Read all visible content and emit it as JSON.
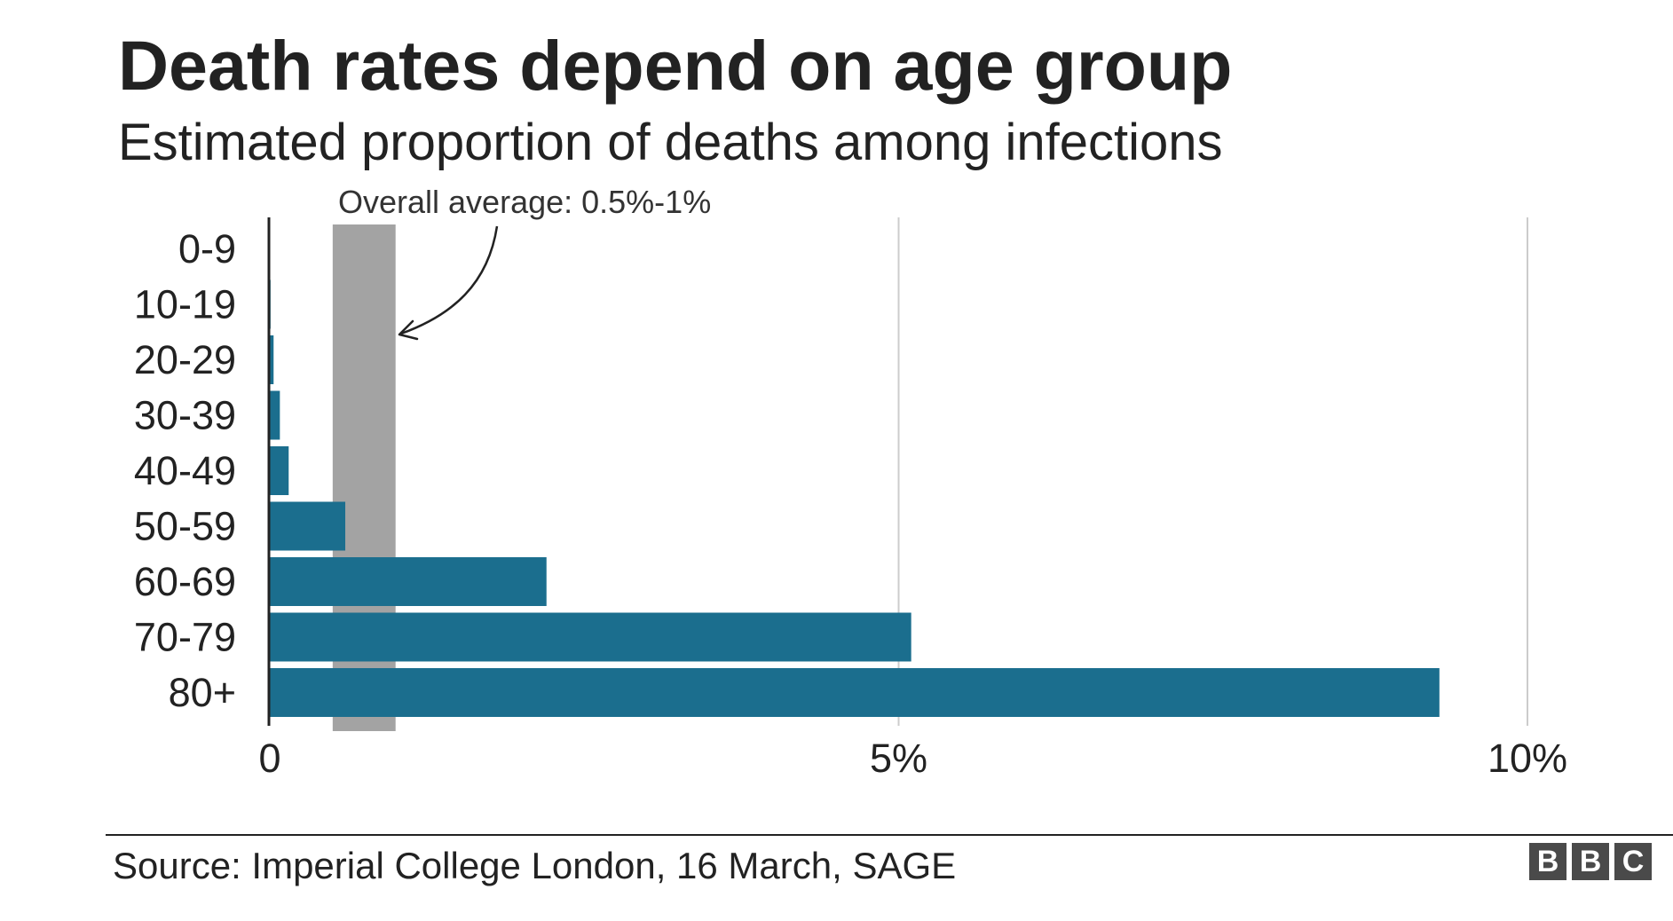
{
  "title": "Death rates depend on age group",
  "subtitle": "Estimated proportion of deaths among infections",
  "source": "Source: Imperial College London, 16 March, SAGE",
  "logo_letters": [
    "B",
    "B",
    "C"
  ],
  "colors": {
    "bar": "#1b6e8e",
    "band": "#a3a3a3",
    "gridline": "#cccccc",
    "axis": "#222222",
    "text": "#222222"
  },
  "chart_data": {
    "type": "bar",
    "orientation": "horizontal",
    "categories": [
      "0-9",
      "10-19",
      "20-29",
      "30-39",
      "40-49",
      "50-59",
      "60-69",
      "70-79",
      "80+"
    ],
    "values": [
      0.002,
      0.006,
      0.03,
      0.08,
      0.15,
      0.6,
      2.2,
      5.1,
      9.3
    ],
    "unit": "%",
    "xlim": [
      0,
      10
    ],
    "x_ticks": [
      {
        "value": 0,
        "label": "0"
      },
      {
        "value": 5,
        "label": "5%"
      },
      {
        "value": 10,
        "label": "10%"
      }
    ],
    "gridlines": [
      5,
      10
    ],
    "reference_band": {
      "from": 0.5,
      "to": 1.0,
      "label": "Overall average: 0.5%-1%"
    },
    "title": "Death rates depend on age group",
    "subtitle": "Estimated proportion of deaths among infections",
    "xlabel": "",
    "ylabel": ""
  }
}
